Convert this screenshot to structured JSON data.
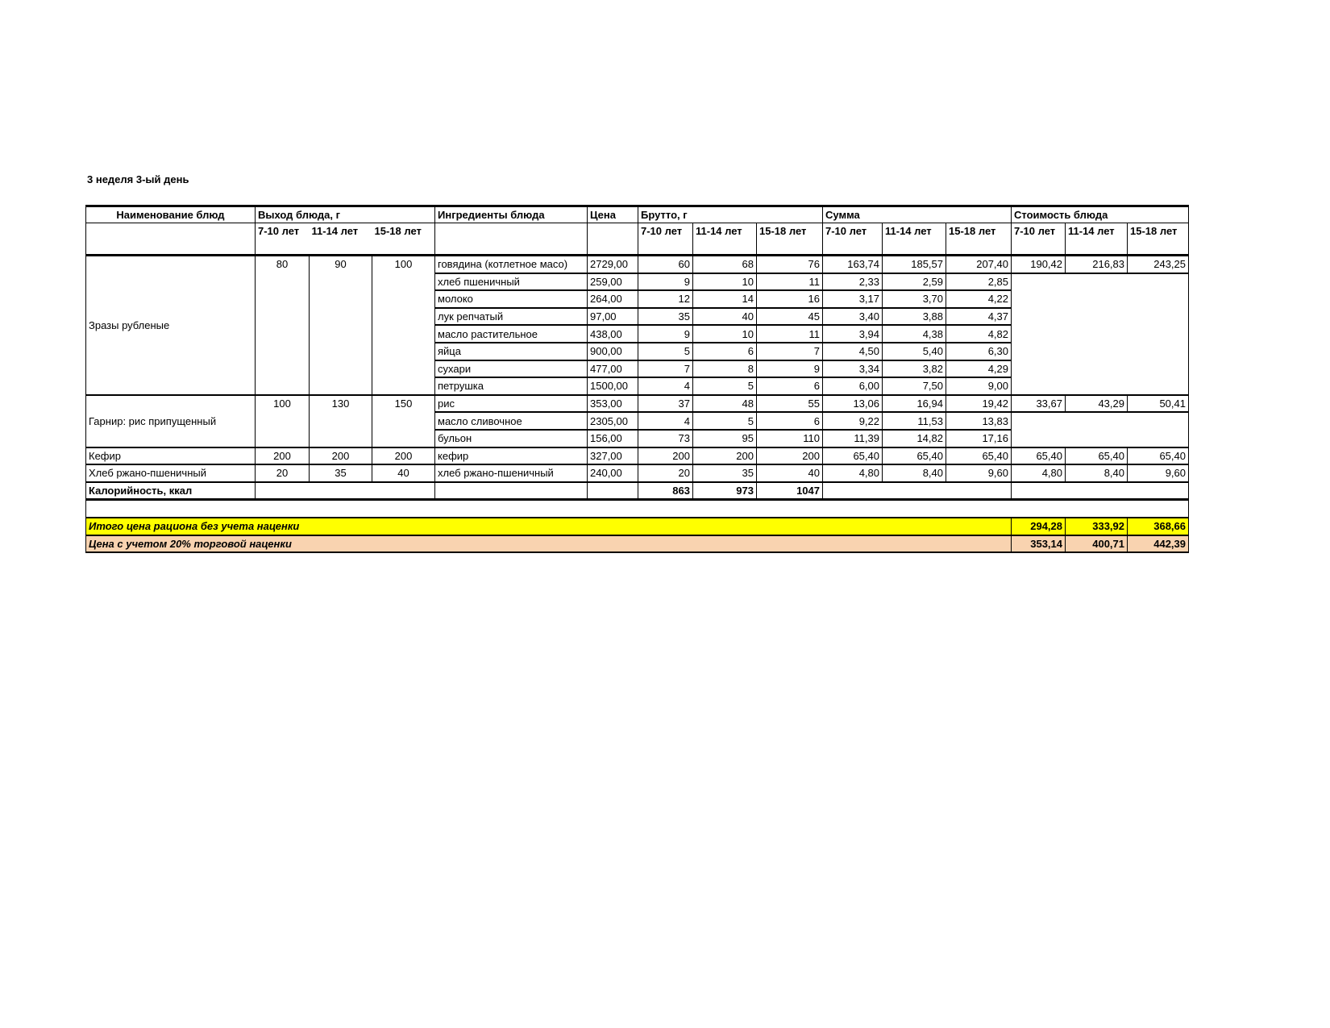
{
  "title": "3 неделя 3-ый день",
  "headers": {
    "dish": "Наименование блюд",
    "yield": "Выход блюда, г",
    "ingredients": "Ингредиенты блюда",
    "price": "Цена",
    "brutto": "Брутто, г",
    "sum": "Сумма",
    "cost": "Стоимость блюда",
    "ages": [
      "7-10 лет",
      "11-14 лет",
      "15-18 лет"
    ]
  },
  "dishes": [
    {
      "name": "Зразы рубленые",
      "yield": [
        "80",
        "90",
        "100"
      ],
      "cost": [
        "190,42",
        "216,83",
        "243,25"
      ],
      "ingredients": [
        {
          "name": "говядина (котлетное масо)",
          "price": "2729,00",
          "brutto": [
            "60",
            "68",
            "76"
          ],
          "sum": [
            "163,74",
            "185,57",
            "207,40"
          ]
        },
        {
          "name": "хлеб пшеничный",
          "price": "259,00",
          "brutto": [
            "9",
            "10",
            "11"
          ],
          "sum": [
            "2,33",
            "2,59",
            "2,85"
          ]
        },
        {
          "name": "молоко",
          "price": "264,00",
          "brutto": [
            "12",
            "14",
            "16"
          ],
          "sum": [
            "3,17",
            "3,70",
            "4,22"
          ]
        },
        {
          "name": "лук репчатый",
          "price": "97,00",
          "brutto": [
            "35",
            "40",
            "45"
          ],
          "sum": [
            "3,40",
            "3,88",
            "4,37"
          ]
        },
        {
          "name": "масло растительное",
          "price": "438,00",
          "brutto": [
            "9",
            "10",
            "11"
          ],
          "sum": [
            "3,94",
            "4,38",
            "4,82"
          ]
        },
        {
          "name": "яйца",
          "price": "900,00",
          "brutto": [
            "5",
            "6",
            "7"
          ],
          "sum": [
            "4,50",
            "5,40",
            "6,30"
          ]
        },
        {
          "name": "сухари",
          "price": "477,00",
          "brutto": [
            "7",
            "8",
            "9"
          ],
          "sum": [
            "3,34",
            "3,82",
            "4,29"
          ]
        },
        {
          "name": "петрушка",
          "price": "1500,00",
          "brutto": [
            "4",
            "5",
            "6"
          ],
          "sum": [
            "6,00",
            "7,50",
            "9,00"
          ]
        }
      ]
    },
    {
      "name": "Гарнир: рис припущенный",
      "yield": [
        "100",
        "130",
        "150"
      ],
      "cost": [
        "33,67",
        "43,29",
        "50,41"
      ],
      "ingredients": [
        {
          "name": "рис",
          "price": "353,00",
          "brutto": [
            "37",
            "48",
            "55"
          ],
          "sum": [
            "13,06",
            "16,94",
            "19,42"
          ]
        },
        {
          "name": "масло сливочное",
          "price": "2305,00",
          "brutto": [
            "4",
            "5",
            "6"
          ],
          "sum": [
            "9,22",
            "11,53",
            "13,83"
          ]
        },
        {
          "name": "бульон",
          "price": "156,00",
          "brutto": [
            "73",
            "95",
            "110"
          ],
          "sum": [
            "11,39",
            "14,82",
            "17,16"
          ]
        }
      ]
    },
    {
      "name": "Кефир",
      "yield": [
        "200",
        "200",
        "200"
      ],
      "cost": [
        "65,40",
        "65,40",
        "65,40"
      ],
      "ingredients": [
        {
          "name": "кефир",
          "price": "327,00",
          "brutto": [
            "200",
            "200",
            "200"
          ],
          "sum": [
            "65,40",
            "65,40",
            "65,40"
          ]
        }
      ]
    },
    {
      "name": "Хлеб ржано-пшеничный",
      "yield": [
        "20",
        "35",
        "40"
      ],
      "cost": [
        "4,80",
        "8,40",
        "9,60"
      ],
      "ingredients": [
        {
          "name": "хлеб ржано-пшеничный",
          "price": "240,00",
          "brutto": [
            "20",
            "35",
            "40"
          ],
          "sum": [
            "4,80",
            "8,40",
            "9,60"
          ]
        }
      ]
    }
  ],
  "calories": {
    "label": "Калорийность, ккал",
    "values": [
      "863",
      "973",
      "1047"
    ]
  },
  "total": {
    "label": "Итого цена рациона без учета наценки",
    "values": [
      "294,28",
      "333,92",
      "368,66"
    ],
    "color": "#ffff00"
  },
  "markup": {
    "label": "Цена с учетом 20% торговой наценки",
    "values": [
      "353,14",
      "400,71",
      "442,39"
    ],
    "color": "#f9d3b0"
  }
}
